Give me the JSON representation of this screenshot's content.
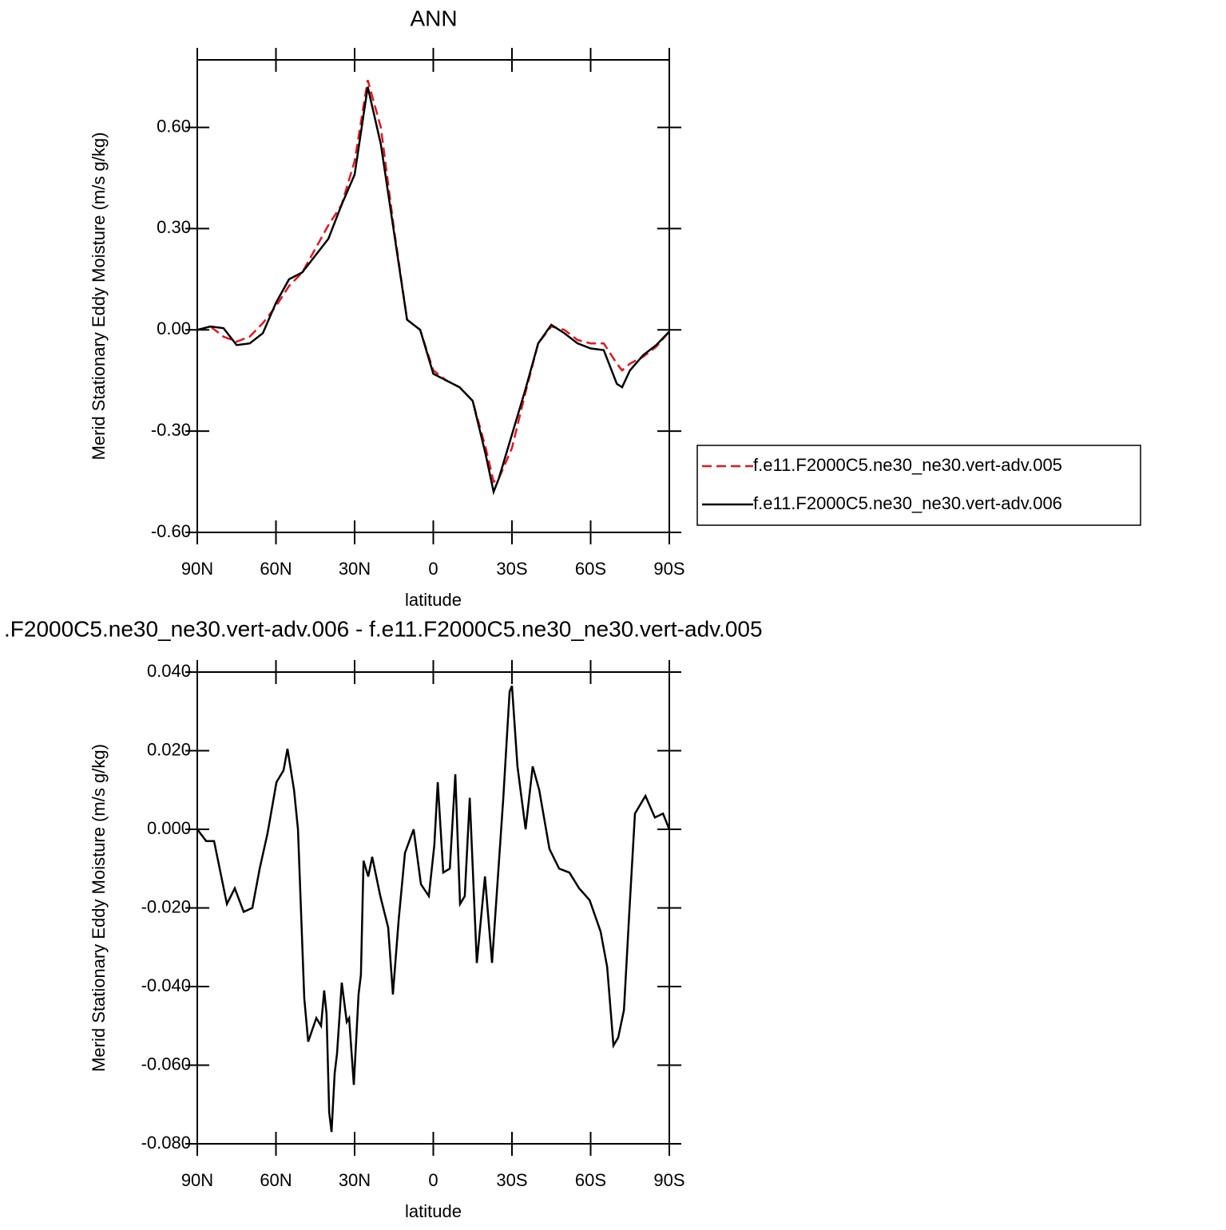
{
  "chart_data": [
    {
      "type": "line",
      "title": "ANN",
      "x_label": "latitude",
      "y_label": "Merid Stationary Eddy Moisture (m/s g/kg)",
      "xlim": [
        90,
        -90
      ],
      "xticks": [
        {
          "value": 90,
          "label": "90N"
        },
        {
          "value": 60,
          "label": "60N"
        },
        {
          "value": 30,
          "label": "30N"
        },
        0,
        {
          "value": -30,
          "label": "30S"
        },
        {
          "value": -60,
          "label": "60S"
        },
        {
          "value": -90,
          "label": "90S"
        }
      ],
      "ylim": [
        -0.6,
        0.8
      ],
      "yticks": [
        {
          "value": -0.6,
          "label": "-0.60"
        },
        {
          "value": -0.3,
          "label": "-0.30"
        },
        {
          "value": 0,
          "label": "0.00"
        },
        {
          "value": 0.3,
          "label": "0.30"
        },
        {
          "value": 0.6,
          "label": "0.60"
        }
      ],
      "legend": "right",
      "x": [
        90,
        85,
        80,
        75,
        70,
        65,
        60,
        55,
        50,
        45,
        40,
        35,
        30,
        25,
        20,
        15,
        10,
        5,
        0,
        -5,
        -10,
        -15,
        -20,
        -23,
        -25,
        -30,
        -35,
        -40,
        -45,
        -50,
        -55,
        -60,
        -65,
        -70,
        -72,
        -75,
        -80,
        -85,
        -90
      ],
      "series": [
        {
          "name": "f.e11.F2000C5.ne30_ne30.vert-adv.005",
          "color": "#e8141b",
          "style": "dashed",
          "values": [
            0,
            0.01,
            -0.02,
            -0.035,
            -0.02,
            0.02,
            0.07,
            0.13,
            0.17,
            0.24,
            0.31,
            0.37,
            0.5,
            0.74,
            0.6,
            0.3,
            0.03,
            0,
            -0.12,
            -0.15,
            -0.17,
            -0.21,
            -0.35,
            -0.45,
            -0.44,
            -0.35,
            -0.19,
            -0.04,
            0.01,
            0,
            -0.03,
            -0.04,
            -0.04,
            -0.1,
            -0.12,
            -0.1,
            -0.08,
            -0.05,
            -0.005
          ]
        },
        {
          "name": "f.e11.F2000C5.ne30_ne30.vert-adv.006",
          "color": "#000000",
          "style": "solid",
          "values": [
            0,
            0.01,
            0.005,
            -0.045,
            -0.04,
            -0.01,
            0.08,
            0.15,
            0.17,
            0.22,
            0.27,
            0.37,
            0.46,
            0.72,
            0.55,
            0.29,
            0.03,
            0,
            -0.13,
            -0.15,
            -0.17,
            -0.21,
            -0.37,
            -0.48,
            -0.44,
            -0.31,
            -0.18,
            -0.04,
            0.015,
            -0.01,
            -0.04,
            -0.055,
            -0.06,
            -0.16,
            -0.17,
            -0.12,
            -0.075,
            -0.045,
            -0.005
          ]
        }
      ]
    },
    {
      "type": "line",
      "title": ".F2000C5.ne30_ne30.vert-adv.006 - f.e11.F2000C5.ne30_ne30.vert-adv.005",
      "x_label": "latitude",
      "y_label": "Merid Stationary Eddy Moisture (m/s g/kg)",
      "xlim": [
        90,
        -90
      ],
      "xticks": [
        {
          "value": 90,
          "label": "90N"
        },
        {
          "value": 60,
          "label": "60N"
        },
        {
          "value": 30,
          "label": "30N"
        },
        0,
        {
          "value": -30,
          "label": "30S"
        },
        {
          "value": -60,
          "label": "60S"
        },
        {
          "value": -90,
          "label": "90S"
        }
      ],
      "ylim": [
        -0.08,
        0.04
      ],
      "yticks": [
        {
          "value": -0.08,
          "label": "-0.080"
        },
        {
          "value": -0.06,
          "label": "-0.060"
        },
        {
          "value": -0.04,
          "label": "-0.040"
        },
        {
          "value": -0.02,
          "label": "-0.020"
        },
        {
          "value": 0,
          "label": "0.000"
        },
        {
          "value": 0.02,
          "label": "0.020"
        },
        {
          "value": 0.04,
          "label": "0.040"
        }
      ],
      "x": [
        90,
        86.6,
        83.6,
        78.7,
        75.7,
        72.3,
        69,
        66.2,
        63.2,
        59.8,
        57.1,
        55.6,
        53.1,
        51.6,
        49.2,
        47.7,
        44.6,
        42.8,
        41.6,
        40.7,
        39.7,
        38.8,
        37.6,
        36.7,
        34.9,
        33,
        32.1,
        30.3,
        28.5,
        27.6,
        26.6,
        24.8,
        23.3,
        20.2,
        17.2,
        15.4,
        13.2,
        10.8,
        7.5,
        4.7,
        1.7,
        -0.4,
        -1.7,
        -3.8,
        -6.3,
        -8.4,
        -10.2,
        -12,
        -13.9,
        -16.6,
        -19.7,
        -22.4,
        -26.7,
        -29.1,
        -30,
        -32.1,
        -35.2,
        -37.9,
        -40.4,
        -44.3,
        -48,
        -51.9,
        -55.6,
        -59.6,
        -63.8,
        -66.3,
        -68.7,
        -70.5,
        -72.7,
        -74.8,
        -76.9,
        -80.9,
        -84.5,
        -87.6,
        -90
      ],
      "series": [
        {
          "color": "#000000",
          "style": "solid",
          "values": [
            0,
            -0.003,
            -0.003,
            -0.019,
            -0.015,
            -0.021,
            -0.02,
            -0.01,
            -0.001,
            0.012,
            0.015,
            0.0205,
            0.01,
            0,
            -0.043,
            -0.054,
            -0.048,
            -0.05,
            -0.041,
            -0.047,
            -0.072,
            -0.077,
            -0.062,
            -0.057,
            -0.039,
            -0.049,
            -0.048,
            -0.065,
            -0.042,
            -0.037,
            -0.008,
            -0.012,
            -0.007,
            -0.017,
            -0.025,
            -0.042,
            -0.023,
            -0.006,
            0,
            -0.014,
            -0.017,
            -0.004,
            0.012,
            -0.011,
            -0.01,
            0.014,
            -0.019,
            -0.017,
            0.008,
            -0.034,
            -0.012,
            -0.034,
            0.008,
            0.035,
            0.0365,
            0.016,
            0,
            0.016,
            0.01,
            -0.005,
            -0.01,
            -0.011,
            -0.015,
            -0.018,
            -0.026,
            -0.035,
            -0.055,
            -0.053,
            -0.046,
            -0.0205,
            0.004,
            0.0085,
            0.003,
            0.004,
            0
          ]
        }
      ]
    }
  ]
}
